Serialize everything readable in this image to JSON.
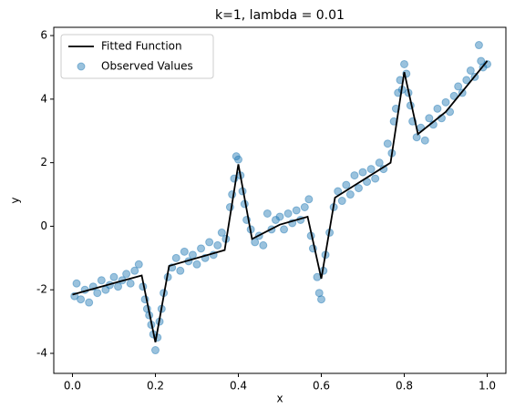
{
  "chart_data": {
    "type": "line",
    "title": "k=1, lambda = 0.01",
    "x_label": "x",
    "y_label": "y",
    "xlim": [
      -0.045,
      1.045
    ],
    "ylim": [
      -4.63,
      6.26
    ],
    "xticks": [
      {
        "value": 0,
        "label": "0.0"
      },
      0.2,
      0.4,
      0.6,
      0.8,
      {
        "value": 1,
        "label": "1.0"
      }
    ],
    "yticks": [
      -4,
      -2,
      0,
      2,
      4,
      6
    ],
    "legend": "upper left",
    "series": [
      {
        "name": "Fitted Function",
        "type": "line",
        "color": "#000000",
        "x": [
          0,
          0.167,
          0.2,
          0.233,
          0.367,
          0.4,
          0.433,
          0.5,
          0.567,
          0.6,
          0.633,
          0.767,
          0.8,
          0.833,
          0.9,
          1.0
        ],
        "values": [
          -2.15,
          -1.55,
          -3.65,
          -1.25,
          -0.75,
          1.95,
          -0.4,
          0.05,
          0.3,
          -1.65,
          0.9,
          2.0,
          4.85,
          2.9,
          3.6,
          5.2
        ]
      },
      {
        "name": "Observed Values",
        "type": "scatter",
        "color": "#1f77b4",
        "x": [
          0.005,
          0.01,
          0.02,
          0.03,
          0.04,
          0.05,
          0.06,
          0.07,
          0.08,
          0.09,
          0.1,
          0.11,
          0.12,
          0.13,
          0.14,
          0.15,
          0.16,
          0.17,
          0.175,
          0.18,
          0.185,
          0.19,
          0.195,
          0.2,
          0.205,
          0.21,
          0.215,
          0.22,
          0.23,
          0.24,
          0.25,
          0.26,
          0.27,
          0.28,
          0.29,
          0.3,
          0.31,
          0.32,
          0.33,
          0.34,
          0.35,
          0.36,
          0.37,
          0.38,
          0.385,
          0.39,
          0.395,
          0.4,
          0.405,
          0.41,
          0.415,
          0.42,
          0.43,
          0.44,
          0.45,
          0.46,
          0.47,
          0.48,
          0.49,
          0.5,
          0.51,
          0.52,
          0.53,
          0.54,
          0.55,
          0.56,
          0.57,
          0.575,
          0.58,
          0.59,
          0.595,
          0.6,
          0.605,
          0.61,
          0.62,
          0.63,
          0.64,
          0.65,
          0.66,
          0.67,
          0.68,
          0.69,
          0.7,
          0.71,
          0.72,
          0.73,
          0.74,
          0.75,
          0.76,
          0.77,
          0.775,
          0.78,
          0.785,
          0.79,
          0.795,
          0.8,
          0.805,
          0.81,
          0.815,
          0.82,
          0.83,
          0.84,
          0.85,
          0.86,
          0.87,
          0.88,
          0.89,
          0.9,
          0.91,
          0.92,
          0.93,
          0.94,
          0.95,
          0.96,
          0.97,
          0.98,
          0.985,
          0.99,
          1.0
        ],
        "values": [
          -2.2,
          -1.8,
          -2.3,
          -2.0,
          -2.4,
          -1.9,
          -2.1,
          -1.7,
          -2.0,
          -1.85,
          -1.6,
          -1.9,
          -1.7,
          -1.5,
          -1.8,
          -1.4,
          -1.2,
          -1.9,
          -2.3,
          -2.6,
          -2.8,
          -3.1,
          -3.4,
          -3.9,
          -3.5,
          -3.0,
          -2.6,
          -2.1,
          -1.6,
          -1.3,
          -1.0,
          -1.4,
          -0.8,
          -1.1,
          -0.9,
          -1.2,
          -0.7,
          -1.0,
          -0.5,
          -0.9,
          -0.6,
          -0.2,
          -0.4,
          0.6,
          1.0,
          1.5,
          2.2,
          2.1,
          1.6,
          1.1,
          0.7,
          0.2,
          -0.1,
          -0.5,
          -0.3,
          -0.6,
          0.4,
          -0.1,
          0.2,
          0.3,
          -0.1,
          0.4,
          0.1,
          0.5,
          0.2,
          0.6,
          0.85,
          -0.3,
          -0.7,
          -1.6,
          -2.1,
          -2.3,
          -1.4,
          -0.9,
          -0.2,
          0.6,
          1.1,
          0.8,
          1.3,
          1.0,
          1.6,
          1.2,
          1.7,
          1.4,
          1.8,
          1.5,
          2.0,
          1.8,
          2.6,
          2.3,
          3.3,
          3.7,
          4.2,
          4.6,
          4.3,
          5.1,
          4.8,
          4.2,
          3.8,
          3.3,
          2.8,
          3.1,
          2.7,
          3.4,
          3.2,
          3.7,
          3.4,
          3.9,
          3.6,
          4.1,
          4.4,
          4.2,
          4.6,
          4.9,
          4.7,
          5.7,
          5.2,
          5.0,
          5.1
        ]
      }
    ]
  }
}
